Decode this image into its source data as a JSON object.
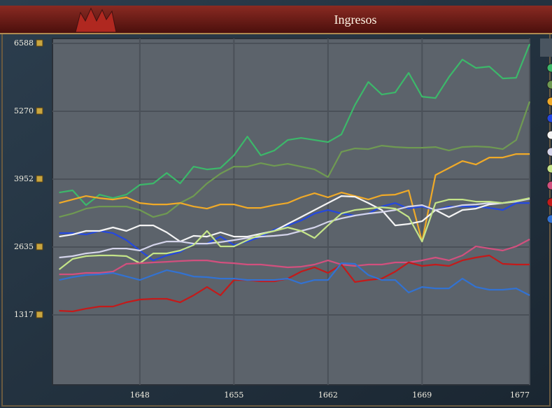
{
  "chart_data": {
    "type": "line",
    "title": "Ingresos",
    "x": [
      1642,
      1643,
      1644,
      1645,
      1646,
      1647,
      1648,
      1649,
      1650,
      1651,
      1652,
      1653,
      1654,
      1655,
      1656,
      1657,
      1658,
      1659,
      1660,
      1661,
      1662,
      1663,
      1664,
      1665,
      1666,
      1667,
      1668,
      1669,
      1670,
      1671,
      1672,
      1673,
      1674,
      1675,
      1676,
      1677
    ],
    "xlim": [
      1641.5,
      1677
    ],
    "xticks": [
      1648,
      1655,
      1662,
      1669,
      1677
    ],
    "ylim": [
      0,
      6588
    ],
    "yticks": [
      1317,
      2635,
      3952,
      5270,
      6588
    ],
    "grid": true,
    "series": [
      {
        "color": "#3cb86a",
        "values": [
          3694,
          3735,
          3449,
          3653,
          3585,
          3653,
          3843,
          3870,
          4074,
          3870,
          4196,
          4142,
          4169,
          4414,
          4780,
          4414,
          4509,
          4712,
          4753,
          4712,
          4672,
          4821,
          5391,
          5839,
          5595,
          5636,
          6016,
          5554,
          5527,
          5934,
          6274,
          6111,
          6138,
          5907,
          5921,
          6573
        ]
      },
      {
        "color": "#6f9a52",
        "values": [
          3218,
          3286,
          3381,
          3422,
          3422,
          3422,
          3354,
          3218,
          3286,
          3490,
          3626,
          3870,
          4060,
          4196,
          4196,
          4264,
          4210,
          4250,
          4196,
          4142,
          3993,
          4481,
          4549,
          4536,
          4604,
          4576,
          4563,
          4563,
          4576,
          4509,
          4576,
          4590,
          4576,
          4536,
          4712,
          5459
        ]
      },
      {
        "color": "#f0aa28",
        "values": [
          3490,
          3558,
          3626,
          3585,
          3558,
          3599,
          3490,
          3463,
          3463,
          3490,
          3422,
          3381,
          3463,
          3463,
          3395,
          3395,
          3449,
          3490,
          3599,
          3680,
          3599,
          3694,
          3626,
          3558,
          3640,
          3653,
          3735,
          2743,
          4033,
          4169,
          4305,
          4237,
          4373,
          4373,
          4441,
          4441
        ]
      },
      {
        "color": "#2448e0",
        "values": [
          2906,
          2906,
          2879,
          2947,
          2906,
          2770,
          2567,
          2376,
          2472,
          2539,
          2702,
          2702,
          2838,
          2675,
          2743,
          2838,
          2974,
          3055,
          3150,
          3286,
          3354,
          3286,
          3246,
          3286,
          3422,
          3490,
          3381,
          3422,
          3354,
          3422,
          3422,
          3422,
          3395,
          3354,
          3490,
          3490
        ]
      },
      {
        "color": "#f4f4f4",
        "values": [
          2838,
          2879,
          2947,
          2947,
          3015,
          2947,
          3055,
          3055,
          2920,
          2743,
          2852,
          2838,
          2920,
          2838,
          2838,
          2893,
          2947,
          3083,
          3218,
          3354,
          3490,
          3626,
          3612,
          3490,
          3354,
          3055,
          3083,
          3137,
          3354,
          3218,
          3354,
          3381,
          3463,
          3490,
          3531,
          3572
        ]
      },
      {
        "color": "#d4d4ea",
        "values": [
          2431,
          2458,
          2512,
          2539,
          2607,
          2607,
          2567,
          2675,
          2743,
          2743,
          2702,
          2702,
          2730,
          2770,
          2811,
          2838,
          2852,
          2879,
          2947,
          3015,
          3123,
          3191,
          3246,
          3286,
          3314,
          3354,
          3422,
          3449,
          3354,
          3395,
          3449,
          3463,
          3490,
          3490,
          3517,
          3572
        ]
      },
      {
        "color": "#c4e488",
        "values": [
          2200,
          2404,
          2458,
          2472,
          2472,
          2458,
          2322,
          2512,
          2512,
          2567,
          2675,
          2947,
          2648,
          2648,
          2770,
          2879,
          2947,
          3015,
          2947,
          2811,
          3055,
          3286,
          3354,
          3381,
          3408,
          3381,
          3218,
          2743,
          3490,
          3558,
          3558,
          3517,
          3517,
          3490,
          3531,
          3585
        ]
      },
      {
        "color": "#d2507e",
        "values": [
          2105,
          2105,
          2132,
          2132,
          2159,
          2309,
          2322,
          2336,
          2349,
          2363,
          2376,
          2376,
          2336,
          2322,
          2295,
          2295,
          2268,
          2241,
          2254,
          2295,
          2376,
          2295,
          2268,
          2295,
          2295,
          2336,
          2336,
          2376,
          2431,
          2376,
          2472,
          2648,
          2607,
          2567,
          2648,
          2784
        ]
      },
      {
        "color": "#c41a1a",
        "values": [
          1399,
          1385,
          1439,
          1480,
          1480,
          1562,
          1616,
          1630,
          1630,
          1562,
          1698,
          1860,
          1698,
          1996,
          1996,
          1969,
          1969,
          2023,
          2159,
          2241,
          2132,
          2295,
          1956,
          1996,
          2023,
          2159,
          2336,
          2268,
          2295,
          2268,
          2376,
          2431,
          2472,
          2309,
          2295,
          2295
        ]
      },
      {
        "color": "#3272d2",
        "values": [
          1996,
          2051,
          2092,
          2105,
          2132,
          2064,
          1996,
          2092,
          2186,
          2132,
          2064,
          2051,
          2023,
          2023,
          1996,
          1996,
          1996,
          2023,
          1928,
          1996,
          1996,
          2322,
          2309,
          2092,
          1996,
          1996,
          1752,
          1860,
          1833,
          1833,
          2023,
          1860,
          1806,
          1806,
          1833,
          1698
        ]
      }
    ]
  }
}
